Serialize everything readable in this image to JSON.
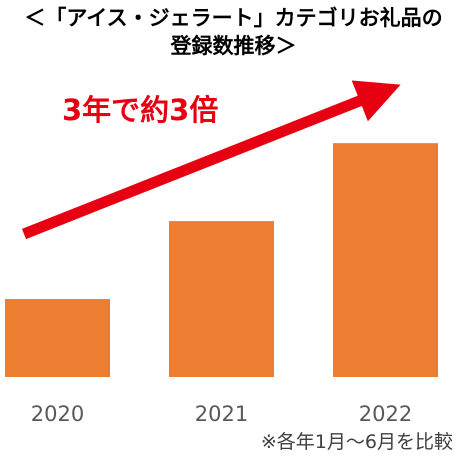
{
  "title_line1": "＜「アイス・ジェラート」カテゴリお礼品の",
  "title_line2": "登録数推移＞",
  "annotation": "3年で約3倍",
  "footnote": "※各年1月～6月を比較",
  "chart_data": {
    "type": "bar",
    "categories": [
      "2020",
      "2021",
      "2022"
    ],
    "values": [
      1,
      2,
      3
    ],
    "ylim": [
      0,
      3.4
    ],
    "bar_color": "#ed7d31",
    "arrow_color": "#e60012",
    "grid": false,
    "legend": "none"
  }
}
